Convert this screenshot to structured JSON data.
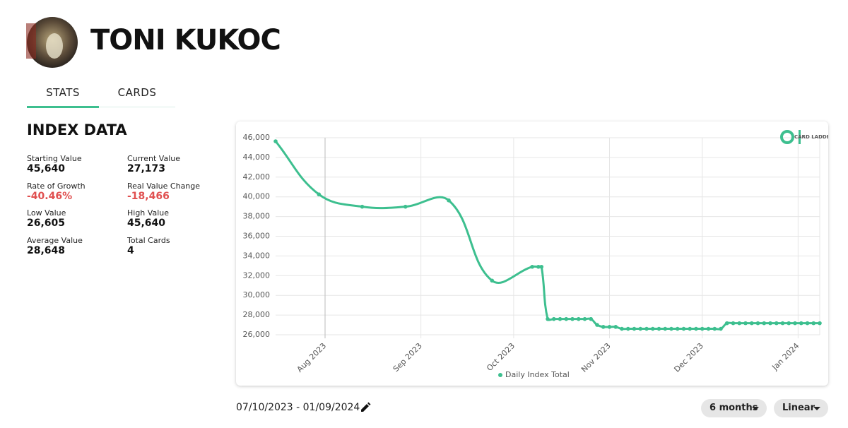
{
  "header": {
    "name": "TONI KUKOC"
  },
  "tabs": [
    "STATS",
    "CARDS"
  ],
  "index_data": {
    "title": "INDEX DATA",
    "items": [
      {
        "label": "Starting Value",
        "value": "45,640"
      },
      {
        "label": "Current Value",
        "value": "27,173"
      },
      {
        "label": "Rate of Growth",
        "value": "-40.46%"
      },
      {
        "label": "Real Value Change",
        "value": "-18,466"
      },
      {
        "label": "Low Value",
        "value": "26,605"
      },
      {
        "label": "High Value",
        "value": "45,640"
      },
      {
        "label": "Average Value",
        "value": "28,648"
      },
      {
        "label": "Total Cards",
        "value": "4"
      }
    ]
  },
  "chart_data": {
    "type": "line",
    "logo": "CARD LADDER",
    "x": [
      "2023-07-16",
      "2023-07-30",
      "2023-08-13",
      "2023-08-27",
      "2023-09-10",
      "2023-09-24",
      "2023-10-07",
      "2023-10-09",
      "2023-10-10",
      "2023-10-12",
      "2023-10-14",
      "2023-10-16",
      "2023-10-18",
      "2023-10-20",
      "2023-10-22",
      "2023-10-24",
      "2023-10-26",
      "2023-10-28",
      "2023-10-30",
      "2023-11-01",
      "2023-11-03",
      "2023-11-05",
      "2023-11-07",
      "2023-11-09",
      "2023-11-11",
      "2023-11-13",
      "2023-11-15",
      "2023-11-17",
      "2023-11-19",
      "2023-11-21",
      "2023-11-23",
      "2023-11-25",
      "2023-11-27",
      "2023-11-29",
      "2023-12-01",
      "2023-12-03",
      "2023-12-05",
      "2023-12-07",
      "2023-12-09",
      "2023-12-11",
      "2023-12-13",
      "2023-12-15",
      "2023-12-17",
      "2023-12-19",
      "2023-12-21",
      "2023-12-23",
      "2023-12-25",
      "2023-12-27",
      "2023-12-29",
      "2023-12-31",
      "2024-01-02",
      "2024-01-04",
      "2024-01-06",
      "2024-01-08"
    ],
    "series": [
      {
        "name": "Daily Index Total",
        "color": "#3dbf8f",
        "values": [
          45640,
          40250,
          39000,
          39000,
          39640,
          31500,
          32900,
          32900,
          32900,
          27600,
          27600,
          27600,
          27600,
          27600,
          27600,
          27600,
          27600,
          27000,
          26800,
          26800,
          26800,
          26605,
          26605,
          26605,
          26605,
          26605,
          26605,
          26605,
          26605,
          26605,
          26605,
          26605,
          26605,
          26605,
          26605,
          26605,
          26605,
          26605,
          27173,
          27173,
          27173,
          27173,
          27173,
          27173,
          27173,
          27173,
          27173,
          27173,
          27173,
          27173,
          27173,
          27173,
          27173,
          27173
        ]
      }
    ],
    "xlim": [
      "2023-07-16",
      "2024-01-08"
    ],
    "xticks": [
      {
        "value": "2023-08-01",
        "label": "Aug 2023"
      },
      {
        "value": "2023-09-01",
        "label": "Sep 2023"
      },
      {
        "value": "2023-10-01",
        "label": "Oct 2023"
      },
      {
        "value": "2023-11-01",
        "label": "Nov 2023"
      },
      {
        "value": "2023-12-01",
        "label": "Dec 2023"
      },
      {
        "value": "2024-01-01",
        "label": "Jan 2024"
      }
    ],
    "ylim": [
      26000,
      46000
    ],
    "yticks": [
      {
        "value": 26000,
        "label": "26,000"
      },
      {
        "value": 28000,
        "label": "28,000"
      },
      {
        "value": 30000,
        "label": "30,000"
      },
      {
        "value": 32000,
        "label": "32,000"
      },
      {
        "value": 34000,
        "label": "34,000"
      },
      {
        "value": 36000,
        "label": "36,000"
      },
      {
        "value": 38000,
        "label": "38,000"
      },
      {
        "value": 40000,
        "label": "40,000"
      },
      {
        "value": 42000,
        "label": "42,000"
      },
      {
        "value": 44000,
        "label": "44,000"
      },
      {
        "value": 46000,
        "label": "46,000"
      }
    ],
    "grid": true,
    "legend": "bottom"
  },
  "footer": {
    "date_range": "07/10/2023 - 01/09/2024",
    "period": "6 months",
    "scale": "Linear"
  }
}
